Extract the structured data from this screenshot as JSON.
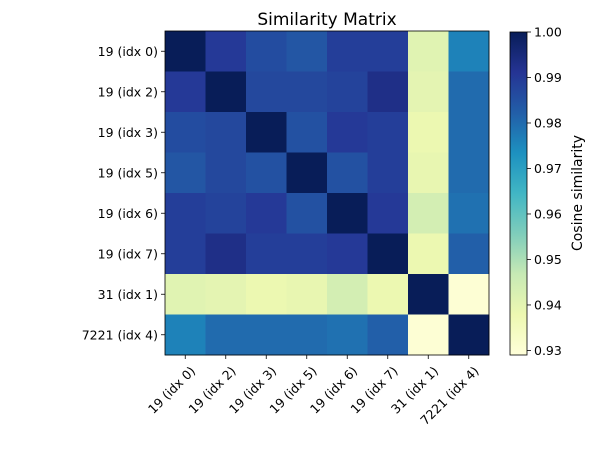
{
  "chart_data": {
    "type": "heatmap",
    "title": "Similarity Matrix",
    "labels": [
      "19 (idx 0)",
      "19 (idx 2)",
      "19 (idx 3)",
      "19 (idx 5)",
      "19 (idx 6)",
      "19 (idx 7)",
      "31 (idx 1)",
      "7221 (idx 4)"
    ],
    "values": [
      [
        1.0,
        0.99,
        0.986,
        0.984,
        0.989,
        0.989,
        0.941,
        0.976
      ],
      [
        0.99,
        1.0,
        0.987,
        0.987,
        0.988,
        0.993,
        0.94,
        0.98
      ],
      [
        0.986,
        0.987,
        1.0,
        0.985,
        0.99,
        0.989,
        0.938,
        0.98
      ],
      [
        0.984,
        0.987,
        0.985,
        1.0,
        0.985,
        0.989,
        0.939,
        0.98
      ],
      [
        0.989,
        0.988,
        0.99,
        0.985,
        1.0,
        0.99,
        0.944,
        0.979
      ],
      [
        0.989,
        0.993,
        0.989,
        0.989,
        0.99,
        1.0,
        0.938,
        0.982
      ],
      [
        0.941,
        0.94,
        0.938,
        0.939,
        0.944,
        0.938,
        1.0,
        0.93
      ],
      [
        0.976,
        0.98,
        0.98,
        0.98,
        0.979,
        0.982,
        0.93,
        1.0
      ]
    ],
    "colorbar": {
      "label": "Cosine similarity",
      "range": [
        0.929,
        1.0
      ],
      "ticks": [
        0.93,
        0.94,
        0.95,
        0.96,
        0.97,
        0.98,
        0.99,
        1.0
      ],
      "tick_labels": [
        "0.93",
        "0.94",
        "0.95",
        "0.96",
        "0.97",
        "0.98",
        "0.99",
        "1.00"
      ],
      "colormap": "YlGnBu",
      "colormap_stops": [
        "#ffffd9",
        "#edf8b1",
        "#c7e9b4",
        "#7fcdbb",
        "#41b6c4",
        "#1d91c0",
        "#225ea8",
        "#253494",
        "#081d58"
      ]
    },
    "grid": false
  }
}
